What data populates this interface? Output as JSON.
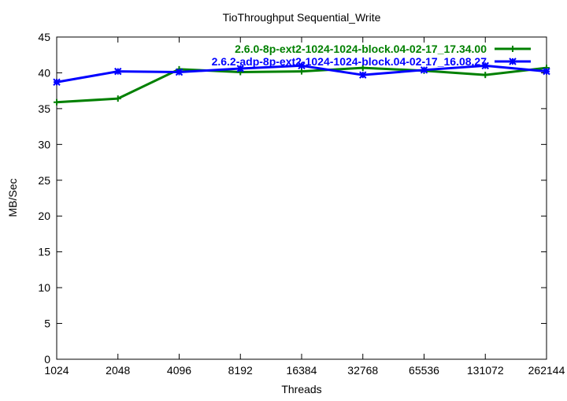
{
  "chart_data": {
    "type": "line",
    "title": "TioThroughput Sequential_Write",
    "xlabel": "Threads",
    "ylabel": "MB/Sec",
    "categories": [
      "1024",
      "2048",
      "4096",
      "8192",
      "16384",
      "32768",
      "65536",
      "131072",
      "262144"
    ],
    "ylim": [
      0,
      45
    ],
    "yticks": [
      0,
      5,
      10,
      15,
      20,
      25,
      30,
      35,
      40,
      45
    ],
    "grid": false,
    "legend_position": "top-right",
    "series": [
      {
        "name": "2.6.0-8p-ext2-1024-1024-block.04-02-17_17.34.00",
        "color": "#008000",
        "marker": "plus",
        "values": [
          35.9,
          36.4,
          40.5,
          40.1,
          40.2,
          40.7,
          40.3,
          39.7,
          40.7
        ]
      },
      {
        "name": "2.6.2-adp-8p-ext2-1024-1024-block.04-02-17_16.08.27",
        "color": "#0000ff",
        "marker": "star",
        "values": [
          38.7,
          40.2,
          40.1,
          40.6,
          41.0,
          39.7,
          40.4,
          41.0,
          40.2
        ]
      }
    ]
  }
}
